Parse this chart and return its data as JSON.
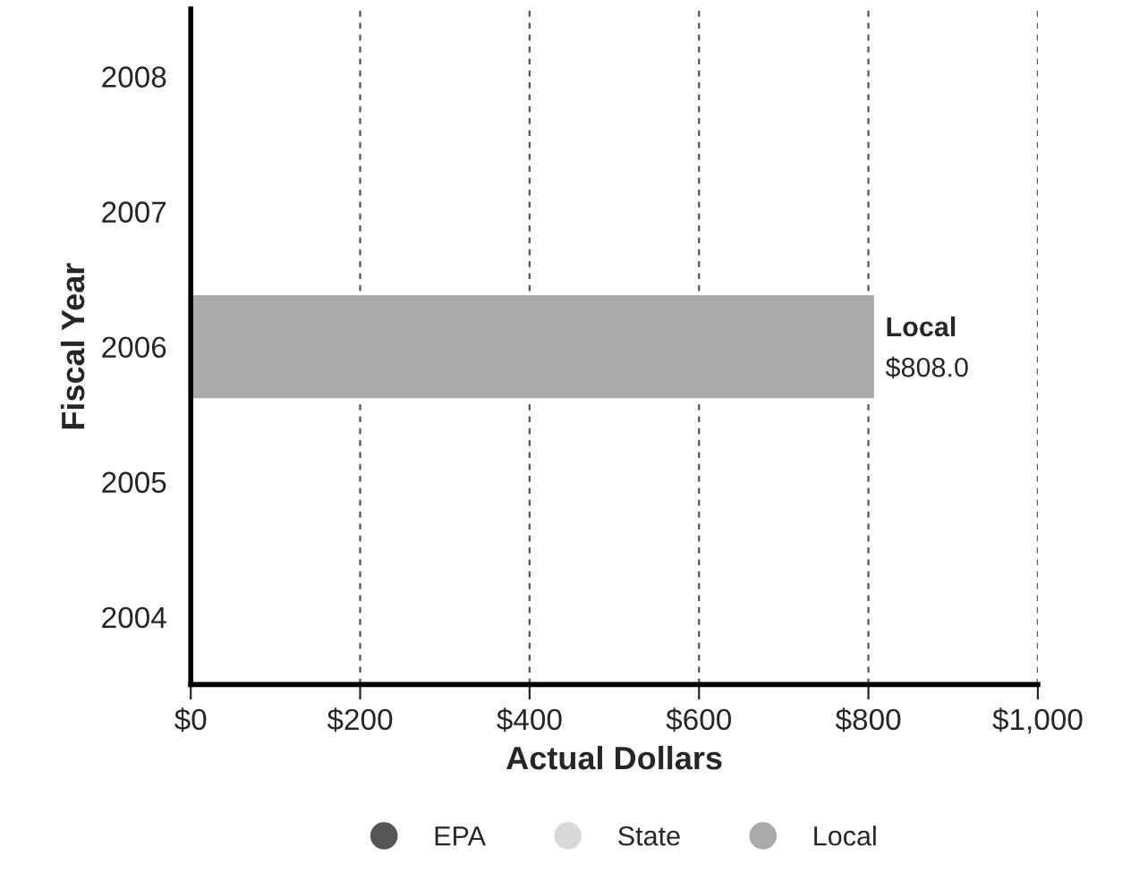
{
  "chart_data": {
    "type": "bar",
    "orientation": "horizontal",
    "xlabel": "Actual Dollars",
    "ylabel": "Fiscal Year",
    "categories": [
      "2008",
      "2007",
      "2006",
      "2005",
      "2004"
    ],
    "series": [
      {
        "name": "EPA",
        "color": "#555555",
        "values": [
          null,
          null,
          null,
          null,
          null
        ]
      },
      {
        "name": "State",
        "color": "#d9d9d9",
        "values": [
          null,
          null,
          null,
          null,
          null
        ]
      },
      {
        "name": "Local",
        "color": "#aaaaaa",
        "values": [
          null,
          null,
          808.0,
          null,
          null
        ],
        "value_labels": [
          null,
          null,
          "$808.0",
          null,
          null
        ]
      }
    ],
    "xlim": [
      0,
      1000
    ],
    "xticks": [
      {
        "value": 0,
        "label": "$0"
      },
      {
        "value": 200,
        "label": "$200"
      },
      {
        "value": 400,
        "label": "$400"
      },
      {
        "value": 600,
        "label": "$600"
      },
      {
        "value": 800,
        "label": "$800"
      },
      {
        "value": 1000,
        "label": "$1,000"
      }
    ],
    "grid": "x",
    "legend": "bottom",
    "marker": "circle"
  }
}
